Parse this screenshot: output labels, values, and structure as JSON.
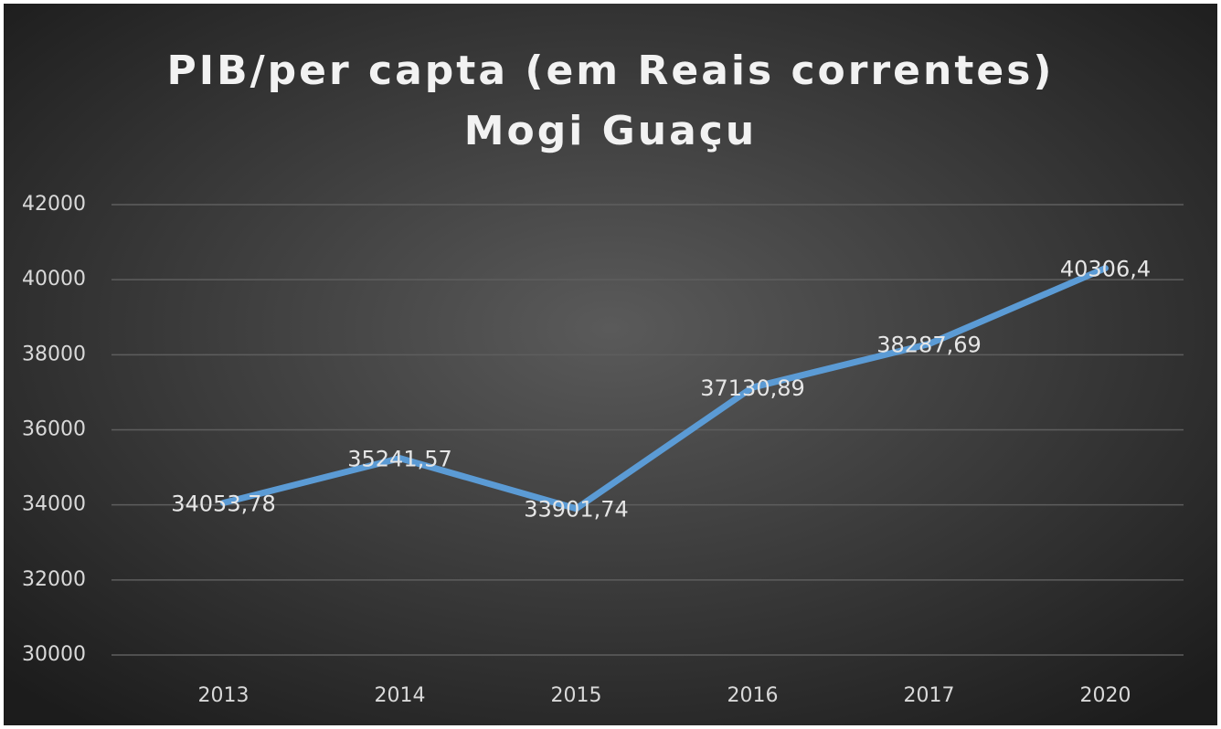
{
  "chart_data": {
    "type": "line",
    "title": "PIB/per capta (em Reais correntes)",
    "subtitle": "Mogi Guaçu",
    "categories": [
      "2013",
      "2014",
      "2015",
      "2016",
      "2017",
      "2020"
    ],
    "series": [
      {
        "color": "#5b9bd5",
        "values": [
          34053.78,
          35241.57,
          33901.74,
          37130.89,
          38287.69,
          40306.4
        ],
        "value_labels": [
          "34053,78",
          "35241,57",
          "33901,74",
          "37130,89",
          "38287,69",
          "40306,4"
        ]
      }
    ],
    "ylim": [
      30000,
      42000
    ],
    "yticks": [
      30000,
      32000,
      34000,
      36000,
      38000,
      40000,
      42000
    ],
    "grid": true
  }
}
